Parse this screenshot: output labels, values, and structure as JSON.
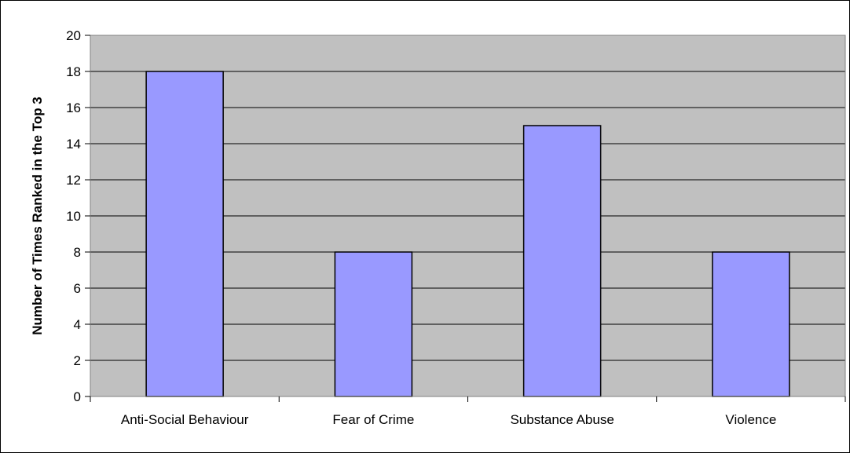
{
  "chart_data": {
    "type": "bar",
    "title": "",
    "xlabel": "",
    "ylabel": "Number of Times Ranked in the Top 3",
    "categories": [
      "Anti-Social Behaviour",
      "Fear of Crime",
      "Substance Abuse",
      "Violence"
    ],
    "values": [
      18,
      8,
      15,
      8
    ],
    "ylim": [
      0,
      20
    ],
    "yticks": [
      0,
      2,
      4,
      6,
      8,
      10,
      12,
      14,
      16,
      18,
      20
    ],
    "grid": true,
    "legend": "none",
    "colors": {
      "bar_fill": "#9999FF",
      "bar_stroke": "#000000",
      "plot_background": "#C0C0C0",
      "gridline": "#000000"
    }
  }
}
